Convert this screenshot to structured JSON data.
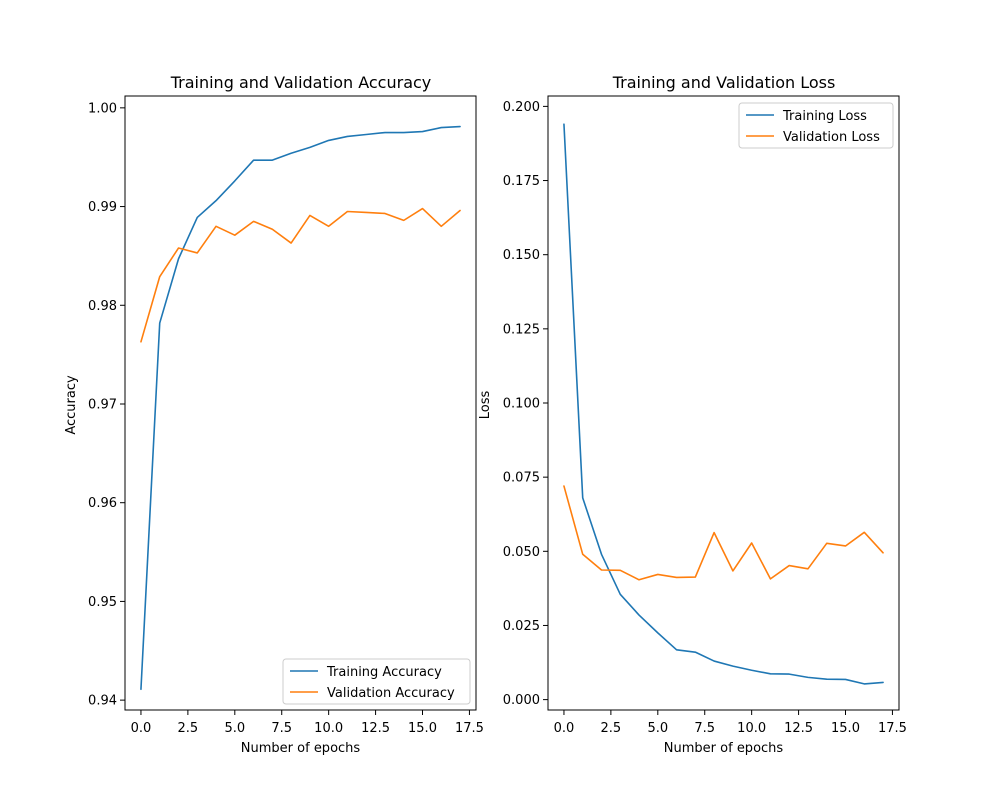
{
  "chart_data": [
    {
      "type": "line",
      "title": "Training and Validation Accuracy",
      "xlabel": "Number of epochs",
      "ylabel": "Accuracy",
      "xlim": [
        -0.85,
        17.85
      ],
      "ylim": [
        0.939,
        1.0012
      ],
      "xticks": [
        0,
        2.5,
        5,
        7.5,
        10,
        12.5,
        15,
        17.5
      ],
      "xtick_labels": [
        "0.0",
        "2.5",
        "5.0",
        "7.5",
        "10.0",
        "12.5",
        "15.0",
        "17.5"
      ],
      "yticks": [
        0.94,
        0.95,
        0.96,
        0.97,
        0.98,
        0.99,
        1.0
      ],
      "ytick_labels": [
        "0.94",
        "0.95",
        "0.96",
        "0.97",
        "0.98",
        "0.99",
        "1.00"
      ],
      "legend_position": "bottom-right",
      "grid": false,
      "x": [
        0,
        1,
        2,
        3,
        4,
        5,
        6,
        7,
        8,
        9,
        10,
        11,
        12,
        13,
        14,
        15,
        16,
        17
      ],
      "series": [
        {
          "name": "Training Accuracy",
          "color": "#1f77b4",
          "values": [
            0.9411,
            0.9782,
            0.9847,
            0.9889,
            0.9906,
            0.9926,
            0.9947,
            0.9947,
            0.9954,
            0.996,
            0.9967,
            0.9971,
            0.9973,
            0.9975,
            0.9975,
            0.9976,
            0.998,
            0.9981
          ]
        },
        {
          "name": "Validation Accuracy",
          "color": "#ff7f0e",
          "values": [
            0.9763,
            0.9829,
            0.9858,
            0.9853,
            0.988,
            0.9871,
            0.9885,
            0.9877,
            0.9863,
            0.9891,
            0.988,
            0.9895,
            0.9894,
            0.9893,
            0.9886,
            0.9898,
            0.988,
            0.9896
          ]
        }
      ]
    },
    {
      "type": "line",
      "title": "Training and Validation Loss",
      "xlabel": "Number of epochs",
      "ylabel": "Loss",
      "xlim": [
        -0.85,
        17.85
      ],
      "ylim": [
        -0.0035,
        0.2035
      ],
      "xticks": [
        0,
        2.5,
        5,
        7.5,
        10,
        12.5,
        15,
        17.5
      ],
      "xtick_labels": [
        "0.0",
        "2.5",
        "5.0",
        "7.5",
        "10.0",
        "12.5",
        "15.0",
        "17.5"
      ],
      "yticks": [
        0.0,
        0.025,
        0.05,
        0.075,
        0.1,
        0.125,
        0.15,
        0.175,
        0.2
      ],
      "ytick_labels": [
        "0.000",
        "0.025",
        "0.050",
        "0.075",
        "0.100",
        "0.125",
        "0.150",
        "0.175",
        "0.200"
      ],
      "legend_position": "top-right",
      "grid": false,
      "x": [
        0,
        1,
        2,
        3,
        4,
        5,
        6,
        7,
        8,
        9,
        10,
        11,
        12,
        13,
        14,
        15,
        16,
        17
      ],
      "series": [
        {
          "name": "Training Loss",
          "color": "#1f77b4",
          "values": [
            0.194,
            0.068,
            0.049,
            0.0355,
            0.0285,
            0.0225,
            0.0168,
            0.016,
            0.013,
            0.0113,
            0.0099,
            0.0087,
            0.0086,
            0.0075,
            0.0069,
            0.0068,
            0.0053,
            0.0058
          ]
        },
        {
          "name": "Validation Loss",
          "color": "#ff7f0e",
          "values": [
            0.072,
            0.049,
            0.0437,
            0.0436,
            0.0404,
            0.0422,
            0.0412,
            0.0413,
            0.0563,
            0.0434,
            0.0528,
            0.0407,
            0.0452,
            0.0441,
            0.0527,
            0.0518,
            0.0564,
            0.0495
          ]
        }
      ]
    }
  ]
}
